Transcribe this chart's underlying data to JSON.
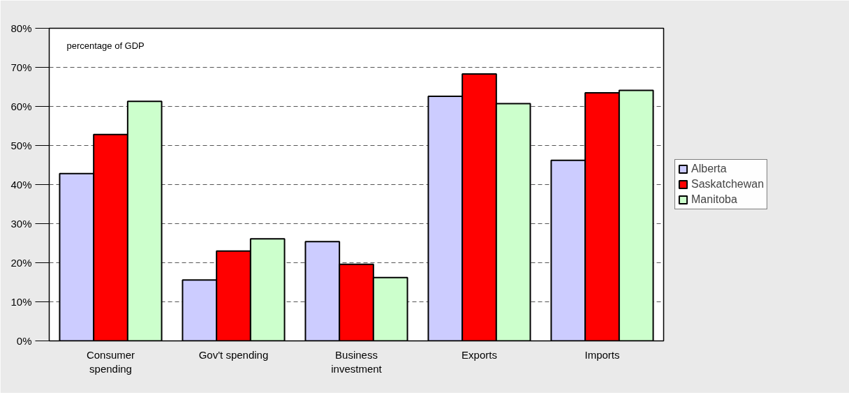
{
  "chart_data": {
    "type": "bar",
    "categories": [
      "Consumer\nspending",
      "Gov't spending",
      "Business\ninvestment",
      "Exports",
      "Imports"
    ],
    "series": [
      {
        "name": "Alberta",
        "color": "#ccccff",
        "values": [
          42.8,
          15.6,
          25.4,
          62.6,
          46.2
        ]
      },
      {
        "name": "Saskatchewan",
        "color": "#ff0000",
        "values": [
          52.8,
          23.0,
          19.6,
          68.3,
          63.5
        ]
      },
      {
        "name": "Manitoba",
        "color": "#ccffcc",
        "values": [
          61.3,
          26.1,
          16.2,
          60.7,
          64.1
        ]
      }
    ],
    "annotations": [
      "percentage of GDP"
    ],
    "ylim": [
      0,
      80
    ],
    "yticks": [
      {
        "value": 0,
        "label": "0%"
      },
      {
        "value": 10,
        "label": "10%"
      },
      {
        "value": 20,
        "label": "20%"
      },
      {
        "value": 30,
        "label": "30%"
      },
      {
        "value": 40,
        "label": "40%"
      },
      {
        "value": 50,
        "label": "50%"
      },
      {
        "value": 60,
        "label": "60%"
      },
      {
        "value": 70,
        "label": "70%"
      },
      {
        "value": 80,
        "label": "80%"
      }
    ],
    "grid": "y",
    "legend": "right"
  }
}
